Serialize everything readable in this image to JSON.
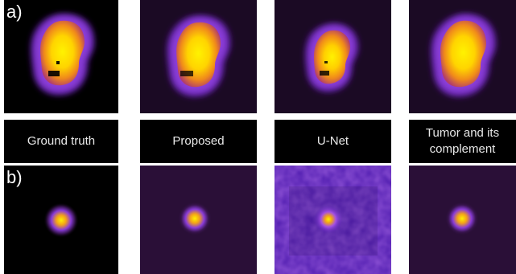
{
  "row_labels": {
    "a": "a)",
    "b": "b)"
  },
  "column_labels": {
    "ground_truth": "Ground truth",
    "proposed": "Proposed",
    "unet": "U-Net",
    "tumor_line1": "Tumor and its",
    "tumor_line2": "complement"
  },
  "colors": {
    "background_black": "#000000",
    "dark_purple": "#1b0a24",
    "purple": "#5a1e9c",
    "violet": "#8a3cd8",
    "orange": "#f08a1a",
    "yellow": "#ffe000",
    "label_text": "#e9e9e9"
  }
}
